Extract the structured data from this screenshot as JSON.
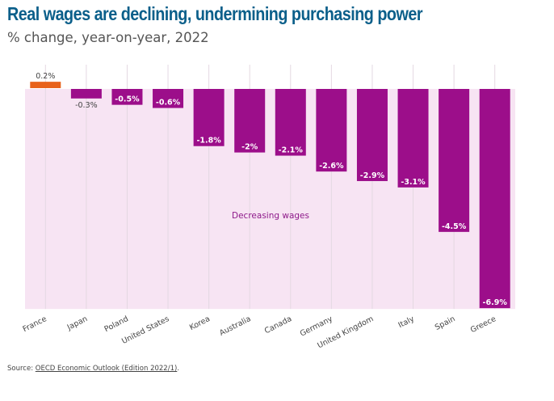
{
  "header": {
    "title": "Real wages are declining, undermining purchasing power",
    "subtitle": "% change, year-on-year, 2022"
  },
  "chart_data": {
    "type": "bar",
    "title": "Real wages are declining, undermining purchasing power",
    "subtitle": "% change, year-on-year, 2022",
    "xlabel": "",
    "ylabel": "% change, year-on-year",
    "categories": [
      "France",
      "Japan",
      "Poland",
      "United States",
      "Korea",
      "Australia",
      "Canada",
      "Germany",
      "United Kingdom",
      "Italy",
      "Spain",
      "Greece"
    ],
    "values": [
      0.2,
      -0.3,
      -0.5,
      -0.6,
      -1.8,
      -2.0,
      -2.1,
      -2.6,
      -2.9,
      -3.1,
      -4.5,
      -6.9
    ],
    "data_labels": [
      "0.2%",
      "-0.3%",
      "-0.5%",
      "-0.6%",
      "-1.8%",
      "-2%",
      "-2.1%",
      "-2.6%",
      "-2.9%",
      "-3.1%",
      "-4.5%",
      "-6.9%"
    ],
    "ylim": [
      -6.9,
      0.2
    ],
    "grid": "vertical",
    "annotation": "Decreasing wages",
    "colors": {
      "positive": "#e8621a",
      "negative": "#9c0e8a",
      "negative_region": "#f7e4f3",
      "annotation": "#8e1a8a",
      "title": "#0b5f8a"
    }
  },
  "footer": {
    "source_prefix": "Source: ",
    "source_link": "OECD Economic Outlook (Edition 2022/1)",
    "source_suffix": "."
  }
}
